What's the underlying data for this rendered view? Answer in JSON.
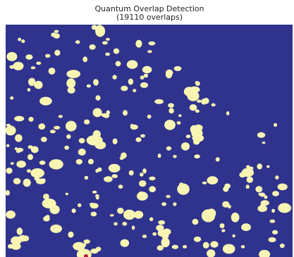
{
  "title": "Quantum Overlap Detection",
  "subtitle": "(19110 overlaps)"
}
